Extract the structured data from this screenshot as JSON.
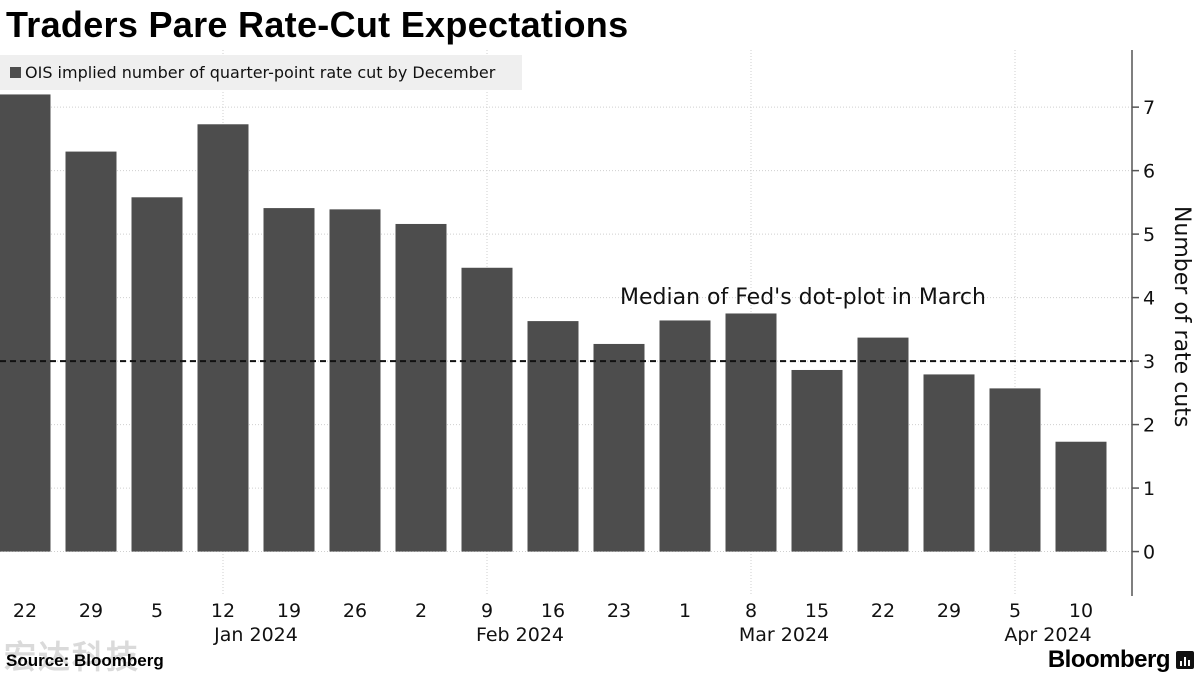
{
  "title": "Traders Pare Rate-Cut Expectations",
  "legend": "OIS implied number of quarter-point rate cut by December",
  "source": "Source: Bloomberg",
  "watermark": "宏达科技",
  "brand": "Bloomberg",
  "colors": {
    "bar": "#4d4d4d",
    "grid": "#cfcfcf",
    "axis": "#555555",
    "legend_bg": "#efefef"
  },
  "chart_data": {
    "type": "bar",
    "title": "Traders Pare Rate-Cut Expectations",
    "ylabel": "Number of rate cuts",
    "y_axis_side": "right",
    "ylim": [
      -0.7,
      7.9
    ],
    "yticks": [
      0,
      1,
      2,
      3,
      4,
      5,
      6,
      7
    ],
    "grid": true,
    "legend_position": "top-left",
    "categories": [
      "22",
      "29",
      "5",
      "12",
      "19",
      "26",
      "2",
      "9",
      "16",
      "23",
      "1",
      "8",
      "15",
      "22",
      "29",
      "5",
      "10"
    ],
    "month_labels": [
      {
        "label": "Jan 2024",
        "category_index": 3.5
      },
      {
        "label": "Feb 2024",
        "category_index": 7.5
      },
      {
        "label": "Mar 2024",
        "category_index": 11.5
      },
      {
        "label": "Apr 2024",
        "category_index": 15.5
      }
    ],
    "series": [
      {
        "name": "OIS implied number of quarter-point rate cut by December",
        "values": [
          7.2,
          6.3,
          5.58,
          6.73,
          5.41,
          5.39,
          5.16,
          4.47,
          3.63,
          3.27,
          3.64,
          3.75,
          2.86,
          3.37,
          2.79,
          2.57,
          1.73
        ]
      }
    ],
    "reference_line": {
      "value": 3,
      "style": "dashed",
      "label": "Median of Fed's dot-plot in March"
    }
  }
}
